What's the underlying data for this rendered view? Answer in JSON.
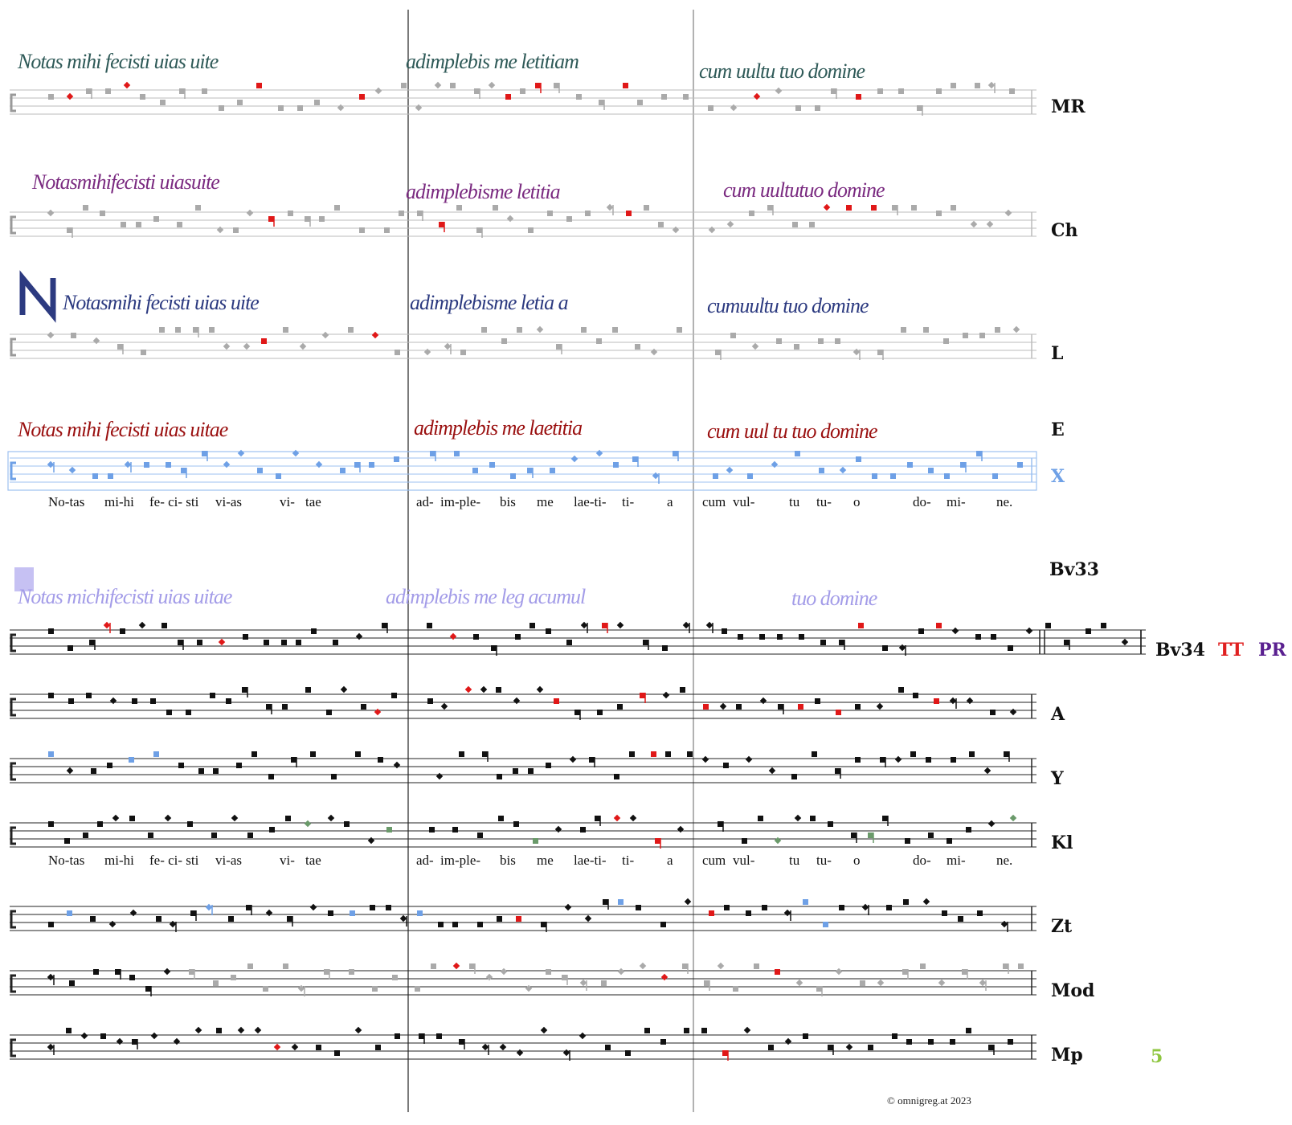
{
  "manuscripts": [
    {
      "id": "mr",
      "label": "MR",
      "color": "#2f5a58",
      "text": [
        "Notas mihi fecisti uias uite",
        "adimplebis me letitiam",
        "cum uultu tuo domine"
      ]
    },
    {
      "id": "ch",
      "label": "Ch",
      "color": "#7a2a80",
      "text": [
        "Notasmihifecisti uiasuite",
        "adimplebisme letitia",
        "cum uultutuo domine"
      ]
    },
    {
      "id": "l",
      "label": "L",
      "color": "#2c3a80",
      "text": [
        "Notasmihi fecisti uias uite",
        "adimplebisme letia a",
        "cumuultu tuo domine"
      ]
    },
    {
      "id": "e",
      "label": "E",
      "color": "#9a1010",
      "text": [
        "Notas mihi fecisti uias uitae",
        "adimplebis me laetitia",
        "cum uul tu tuo domine"
      ]
    },
    {
      "id": "bv33",
      "label": "Bv33",
      "color": "#a39ce8",
      "text": [
        "Notas michifecisti uias uitae",
        "adimplebis me leg acumul",
        "tuo domine"
      ]
    }
  ],
  "staff_labels": {
    "mr": "MR",
    "ch": "Ch",
    "l": "L",
    "x": "X",
    "bv34": "Bv34",
    "a": "A",
    "y": "Y",
    "kl": "Kl",
    "zt": "Zt",
    "mod": "Mod",
    "mp": "Mp"
  },
  "extra_labels": {
    "tt": "TT",
    "pr": "PR",
    "mp_num": "5",
    "e": "E",
    "bv33": "Bv33"
  },
  "label_colors": {
    "x": "#6ea0e6",
    "tt": "#e02020",
    "pr": "#5a2090",
    "mp_num": "#8ec63f"
  },
  "lyrics": {
    "syllables": [
      "No-tas",
      "mi-hi",
      "fe- ci- sti",
      "vi-as",
      "vi-",
      "tae",
      "ad-",
      "im-ple-",
      "bis",
      "me",
      "lae-ti-",
      "ti-",
      "a",
      "cum",
      "vul-",
      "tu",
      "tu-",
      "o",
      "do-",
      "mi-",
      "ne."
    ],
    "syllables_kl": [
      "No-tas",
      "mi-hi",
      "fe- ci- sti",
      "vi-as",
      "vi-",
      "tae",
      "ad-",
      "im-ple-",
      "bis",
      "me",
      "lae-ti-",
      "ti-",
      "a",
      "cum",
      "vul-",
      "tu",
      "tu-",
      "o",
      "do-",
      "mi-",
      "ne."
    ]
  },
  "credit": "© omnigreg.at   2023"
}
